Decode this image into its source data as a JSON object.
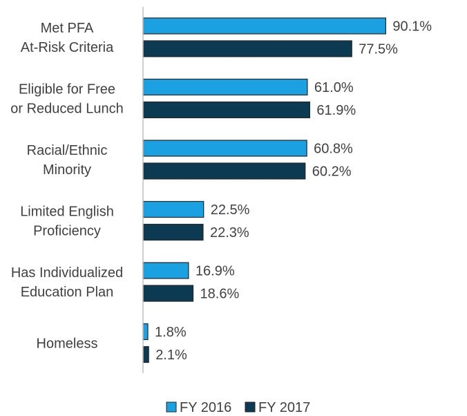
{
  "chart_data": {
    "type": "bar",
    "orientation": "horizontal",
    "categories": [
      [
        "Met PFA",
        "At-Risk Criteria"
      ],
      [
        "Eligible for Free",
        "or Reduced Lunch"
      ],
      [
        "Racial/Ethnic",
        "Minority"
      ],
      [
        "Limited English",
        "Proficiency"
      ],
      [
        "Has Individualized",
        "Education Plan"
      ],
      [
        "Homeless"
      ]
    ],
    "series": [
      {
        "name": "FY 2016",
        "color": "#1ba1e2",
        "values": [
          90.1,
          61.0,
          60.8,
          22.5,
          16.9,
          1.8
        ],
        "labels": [
          "90.1%",
          "61.0%",
          "60.8%",
          "22.5%",
          "16.9%",
          "1.8%"
        ]
      },
      {
        "name": "FY 2017",
        "color": "#0c3a52",
        "values": [
          77.5,
          61.9,
          60.2,
          22.3,
          18.6,
          2.1
        ],
        "labels": [
          "77.5%",
          "61.9%",
          "60.2%",
          "22.3%",
          "18.6%",
          "2.1%"
        ]
      }
    ],
    "xlim": [
      0,
      100
    ],
    "grid": false,
    "legend_position": "bottom-center"
  }
}
